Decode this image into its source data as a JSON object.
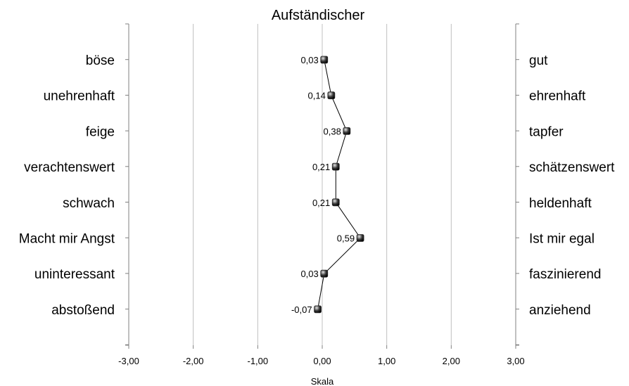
{
  "chart_data": {
    "type": "line",
    "title": "Aufständischer",
    "xlabel": "Skala",
    "ylabel": "",
    "xlim": [
      -3,
      3
    ],
    "x_ticks": [
      -3,
      -2,
      -1,
      0,
      1,
      2,
      3
    ],
    "x_tick_labels": [
      "-3,00",
      "-2,00",
      "-1,00",
      "0,00",
      "1,00",
      "2,00",
      "3,00"
    ],
    "grid": "vertical",
    "legend": "none",
    "left_labels": [
      "böse",
      "unehrenhaft",
      "feige",
      "verachtenswert",
      "schwach",
      "Macht mir Angst",
      "uninteressant",
      "abstoßend"
    ],
    "right_labels": [
      "gut",
      "ehrenhaft",
      "tapfer",
      "schätzenswert",
      "heldenhaft",
      "Ist mir egal",
      "faszinierend",
      "anziehend"
    ],
    "values": [
      0.03,
      0.14,
      0.38,
      0.21,
      0.21,
      0.59,
      0.03,
      -0.07
    ],
    "value_labels": [
      "0,03",
      "0,14",
      "0,38",
      "0,21",
      "0,21",
      "0,59",
      "0,03",
      "-0,07"
    ],
    "colors": {
      "grid": "#c0c0c0",
      "axis": "#808080",
      "line": "#000000",
      "marker": "#2a2a2a"
    }
  }
}
